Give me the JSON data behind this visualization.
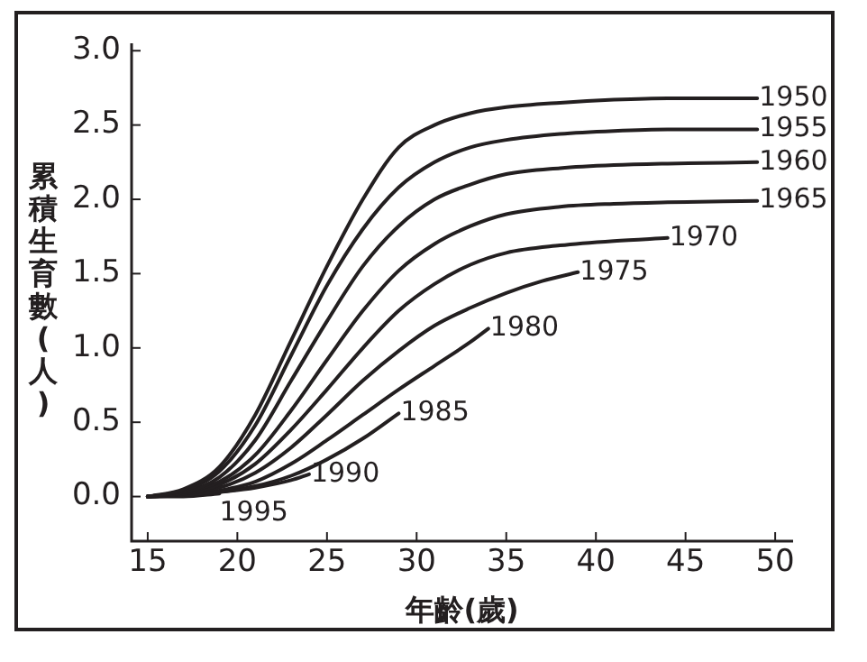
{
  "chart_data": {
    "type": "line",
    "xlabel": "年齡(歲)",
    "ylabel": "累積生育數(人)",
    "xlim": [
      14.1,
      51
    ],
    "ylim": [
      -0.3,
      3.05
    ],
    "xticks": [
      15,
      20,
      25,
      30,
      35,
      40,
      45,
      50
    ],
    "yticks": [
      {
        "value": 0,
        "label": "0.0"
      },
      0.5,
      {
        "value": 1,
        "label": "1.0"
      },
      1.5,
      {
        "value": 2,
        "label": "2.0"
      },
      2.5,
      {
        "value": 3,
        "label": "3.0"
      }
    ],
    "grid": false,
    "legend": false,
    "marker": "none",
    "line_style": "solid",
    "series": [
      {
        "name": "1950",
        "color": "#231f20",
        "x": [
          15,
          17,
          19,
          21,
          23,
          25,
          27,
          29,
          31,
          33,
          35,
          38,
          41,
          44,
          47,
          49
        ],
        "values": [
          0,
          0.05,
          0.2,
          0.55,
          1.05,
          1.55,
          2.0,
          2.35,
          2.5,
          2.58,
          2.62,
          2.65,
          2.67,
          2.68,
          2.68,
          2.68
        ]
      },
      {
        "name": "1955",
        "color": "#231f20",
        "x": [
          15,
          17,
          19,
          21,
          23,
          25,
          27,
          29,
          31,
          33,
          35,
          38,
          41,
          44,
          49
        ],
        "values": [
          0,
          0.04,
          0.17,
          0.48,
          0.95,
          1.42,
          1.8,
          2.08,
          2.25,
          2.35,
          2.4,
          2.44,
          2.46,
          2.47,
          2.47
        ]
      },
      {
        "name": "1960",
        "color": "#231f20",
        "x": [
          15,
          17,
          19,
          21,
          23,
          25,
          27,
          29,
          31,
          33,
          35,
          38,
          41,
          44,
          49
        ],
        "values": [
          0,
          0.03,
          0.13,
          0.38,
          0.78,
          1.18,
          1.55,
          1.82,
          2.0,
          2.1,
          2.17,
          2.21,
          2.23,
          2.24,
          2.25
        ]
      },
      {
        "name": "1965",
        "color": "#231f20",
        "x": [
          15,
          17,
          19,
          21,
          23,
          25,
          27,
          29,
          31,
          33,
          35,
          38,
          41,
          44,
          49
        ],
        "values": [
          0,
          0.03,
          0.1,
          0.28,
          0.58,
          0.92,
          1.25,
          1.52,
          1.7,
          1.82,
          1.9,
          1.95,
          1.97,
          1.98,
          1.99
        ]
      },
      {
        "name": "1970",
        "color": "#231f20",
        "x": [
          15,
          17,
          19,
          21,
          23,
          25,
          27,
          29,
          31,
          33,
          35,
          38,
          41,
          44
        ],
        "values": [
          0,
          0.02,
          0.08,
          0.22,
          0.45,
          0.72,
          1.0,
          1.25,
          1.43,
          1.56,
          1.64,
          1.69,
          1.72,
          1.74
        ]
      },
      {
        "name": "1975",
        "color": "#231f20",
        "x": [
          15,
          17,
          19,
          21,
          23,
          25,
          27,
          29,
          31,
          33,
          35,
          37,
          39
        ],
        "values": [
          0,
          0.02,
          0.06,
          0.16,
          0.33,
          0.55,
          0.78,
          0.98,
          1.15,
          1.27,
          1.37,
          1.45,
          1.51
        ]
      },
      {
        "name": "1980",
        "color": "#231f20",
        "x": [
          15,
          17,
          19,
          21,
          23,
          25,
          27,
          29,
          31,
          33,
          34
        ],
        "values": [
          0,
          0.01,
          0.04,
          0.1,
          0.22,
          0.38,
          0.55,
          0.72,
          0.88,
          1.04,
          1.13
        ]
      },
      {
        "name": "1985",
        "color": "#231f20",
        "x": [
          15,
          17,
          19,
          21,
          23,
          25,
          27,
          29
        ],
        "values": [
          0,
          0.01,
          0.03,
          0.07,
          0.14,
          0.25,
          0.39,
          0.56
        ]
      },
      {
        "name": "1990",
        "color": "#231f20",
        "x": [
          15,
          17,
          19,
          21,
          23,
          24
        ],
        "values": [
          0,
          0.01,
          0.03,
          0.06,
          0.11,
          0.15
        ]
      },
      {
        "name": "1995",
        "color": "#231f20",
        "x": [
          15,
          17,
          19
        ],
        "values": [
          0,
          0.0,
          0.02
        ]
      }
    ]
  }
}
